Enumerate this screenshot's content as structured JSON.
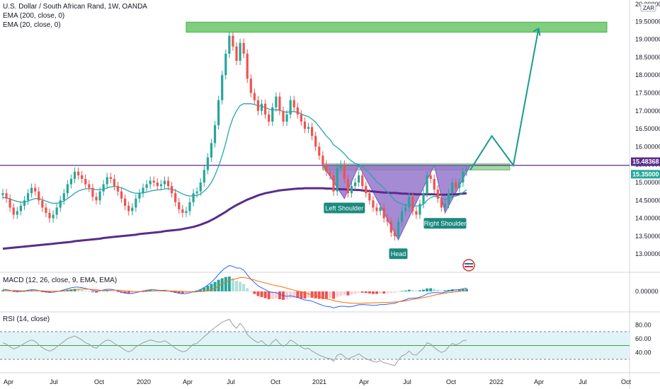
{
  "chart_data": {
    "type": "line",
    "legend": {
      "symbol": "U.S. Dollar / South African Rand, 1W, OANDA",
      "ema200": "EMA (200, close, 0)",
      "ema20": "EMA (20, close, 0)"
    },
    "price_axis": {
      "ticks": [
        "19.50000",
        "19.00000",
        "18.50000",
        "18.00000",
        "17.50000",
        "17.00000",
        "16.50000",
        "16.00000",
        "15.50000",
        "15.00000",
        "14.50000",
        "14.00000",
        "13.50000",
        "13.00000"
      ],
      "top_label": "20.00000",
      "currency": "ZAR"
    },
    "time_axis": [
      "Apr",
      "Jul",
      "Oct",
      "2020",
      "Apr",
      "Jul",
      "Oct",
      "2021",
      "Apr",
      "Jul",
      "Oct",
      "2022",
      "Apr",
      "Jul",
      "Oct"
    ],
    "price_tags": [
      {
        "value": "15.48368",
        "color": "#5b2c8a"
      },
      {
        "value": "15.35000",
        "color": "#26a69a"
      }
    ],
    "close_series": [
      14.7,
      14.55,
      14.3,
      14.1,
      14.2,
      14.35,
      14.5,
      14.7,
      14.85,
      14.75,
      14.5,
      14.3,
      14.15,
      14.0,
      14.1,
      14.3,
      14.5,
      14.7,
      14.95,
      15.1,
      15.3,
      15.2,
      15.1,
      14.95,
      14.85,
      14.6,
      14.5,
      14.75,
      14.95,
      15.15,
      15.1,
      14.9,
      14.75,
      14.55,
      14.35,
      14.2,
      14.3,
      14.55,
      14.7,
      14.85,
      14.95,
      15.05,
      15.0,
      14.9,
      14.95,
      15.05,
      14.9,
      14.7,
      14.45,
      14.25,
      14.15,
      14.2,
      14.45,
      14.7,
      14.75,
      15.0,
      15.35,
      15.7,
      16.1,
      16.6,
      17.3,
      18.0,
      18.6,
      19.1,
      18.8,
      18.4,
      18.9,
      18.6,
      17.9,
      17.5,
      17.3,
      17.0,
      17.2,
      16.9,
      16.7,
      17.1,
      17.4,
      17.0,
      16.7,
      16.9,
      17.3,
      17.1,
      16.9,
      16.7,
      16.5,
      16.55,
      16.3,
      16.0,
      15.75,
      15.5,
      15.3,
      15.2,
      14.75,
      15.4,
      15.5,
      15.1,
      14.7,
      14.9,
      15.0,
      15.2,
      14.9,
      14.7,
      14.5,
      14.3,
      14.2,
      14.3,
      14.0,
      13.9,
      13.6,
      13.5,
      13.9,
      14.2,
      14.3,
      14.6,
      14.2,
      14.1,
      14.4,
      14.7,
      15.2,
      15.1,
      14.8,
      14.55,
      14.3,
      14.4,
      14.7,
      15.0,
      14.85,
      15.0,
      15.3,
      15.35
    ],
    "ema20": [
      14.58,
      14.57,
      14.54,
      14.5,
      14.47,
      14.45,
      14.45,
      14.48,
      14.52,
      14.55,
      14.55,
      14.52,
      14.48,
      14.44,
      14.42,
      14.42,
      14.44,
      14.48,
      14.55,
      14.62,
      14.7,
      14.76,
      14.8,
      14.82,
      14.83,
      14.82,
      14.8,
      14.8,
      14.81,
      14.85,
      14.88,
      14.89,
      14.88,
      14.85,
      14.81,
      14.76,
      14.72,
      14.7,
      14.7,
      14.71,
      14.73,
      14.76,
      14.78,
      14.79,
      14.8,
      14.82,
      14.83,
      14.81,
      14.78,
      14.73,
      14.68,
      14.64,
      14.62,
      14.63,
      14.64,
      14.68,
      14.76,
      14.86,
      15.0,
      15.2,
      15.45,
      15.75,
      16.1,
      16.5,
      16.8,
      17.0,
      17.15,
      17.2,
      17.2,
      17.2,
      17.18,
      17.15,
      17.13,
      17.1,
      17.05,
      17.03,
      17.03,
      17.02,
      16.98,
      16.96,
      16.98,
      16.98,
      16.96,
      16.92,
      16.87,
      16.84,
      16.77,
      16.68,
      16.56,
      16.43,
      16.3,
      16.2,
      16.05,
      15.98,
      15.9,
      15.8,
      15.68,
      15.6,
      15.53,
      15.5,
      15.45,
      15.36,
      15.26,
      15.14,
      15.02,
      14.94,
      14.84,
      14.74,
      14.62,
      14.5,
      14.44,
      14.4,
      14.36,
      14.38,
      14.36,
      14.34,
      14.35,
      14.39,
      14.5,
      14.58,
      14.61,
      14.6,
      14.56,
      14.53,
      14.55,
      14.6,
      14.62,
      14.65,
      14.72,
      14.8
    ],
    "ema200": [
      13.15,
      13.16,
      13.17,
      13.18,
      13.19,
      13.2,
      13.21,
      13.22,
      13.23,
      13.24,
      13.25,
      13.26,
      13.27,
      13.28,
      13.29,
      13.3,
      13.31,
      13.32,
      13.33,
      13.34,
      13.36,
      13.37,
      13.38,
      13.39,
      13.4,
      13.41,
      13.42,
      13.43,
      13.45,
      13.46,
      13.47,
      13.48,
      13.49,
      13.5,
      13.51,
      13.52,
      13.53,
      13.54,
      13.56,
      13.57,
      13.58,
      13.59,
      13.6,
      13.61,
      13.62,
      13.64,
      13.65,
      13.66,
      13.67,
      13.68,
      13.7,
      13.72,
      13.74,
      13.76,
      13.79,
      13.82,
      13.86,
      13.9,
      13.95,
      14.0,
      14.06,
      14.12,
      14.18,
      14.25,
      14.31,
      14.37,
      14.42,
      14.47,
      14.52,
      14.56,
      14.6,
      14.64,
      14.67,
      14.7,
      14.72,
      14.74,
      14.76,
      14.78,
      14.79,
      14.8,
      14.81,
      14.82,
      14.83,
      14.83,
      14.84,
      14.84,
      14.84,
      14.84,
      14.84,
      14.84,
      14.83,
      14.83,
      14.82,
      14.82,
      14.81,
      14.81,
      14.8,
      14.8,
      14.79,
      14.79,
      14.78,
      14.77,
      14.76,
      14.75,
      14.74,
      14.73,
      14.72,
      14.72,
      14.71,
      14.71,
      14.7,
      14.69,
      14.69,
      14.68,
      14.68,
      14.67,
      14.67,
      14.67,
      14.67,
      14.67,
      14.67,
      14.66,
      14.66,
      14.66,
      14.66,
      14.67,
      14.67,
      14.68,
      14.69,
      14.7
    ],
    "resistance_zone": {
      "low": 19.2,
      "high": 19.48
    },
    "neckline_zone": {
      "low": 15.35,
      "high": 15.52
    },
    "horizontal_line": 15.48,
    "pattern_labels": [
      "Left Shoulder",
      "Head",
      "Right Shoulder"
    ],
    "projection": [
      {
        "x": 130,
        "y": 15.35
      },
      {
        "x": 136,
        "y": 16.3
      },
      {
        "x": 142,
        "y": 15.48
      },
      {
        "x": 149,
        "y": 19.3
      },
      {
        "x": 150,
        "y": 19.1
      }
    ],
    "macd": {
      "title": "MACD (12, 26, close, 9, EMA, EMA)",
      "tick": "0.00000",
      "hist": [
        0.05,
        0.04,
        0.02,
        -0.02,
        -0.04,
        -0.03,
        0.0,
        0.03,
        0.05,
        0.04,
        0.01,
        -0.03,
        -0.05,
        -0.06,
        -0.05,
        -0.02,
        0.02,
        0.05,
        0.08,
        0.1,
        0.12,
        0.1,
        0.07,
        0.03,
        0.0,
        -0.04,
        -0.06,
        -0.03,
        0.02,
        0.06,
        0.05,
        0.01,
        -0.03,
        -0.07,
        -0.1,
        -0.12,
        -0.1,
        -0.05,
        -0.01,
        0.03,
        0.05,
        0.07,
        0.06,
        0.03,
        0.02,
        0.03,
        0.01,
        -0.03,
        -0.07,
        -0.1,
        -0.11,
        -0.09,
        -0.04,
        0.01,
        0.04,
        0.1,
        0.18,
        0.27,
        0.36,
        0.45,
        0.55,
        0.62,
        0.68,
        0.7,
        0.62,
        0.5,
        0.45,
        0.35,
        0.15,
        0.0,
        -0.12,
        -0.22,
        -0.27,
        -0.32,
        -0.37,
        -0.36,
        -0.33,
        -0.37,
        -0.4,
        -0.38,
        -0.32,
        -0.3,
        -0.31,
        -0.33,
        -0.34,
        -0.3,
        -0.3,
        -0.33,
        -0.35,
        -0.36,
        -0.36,
        -0.33,
        -0.35,
        -0.26,
        -0.2,
        -0.18,
        -0.19,
        -0.15,
        -0.12,
        -0.06,
        -0.06,
        -0.08,
        -0.1,
        -0.12,
        -0.12,
        -0.09,
        -0.1,
        -0.08,
        -0.07,
        -0.06,
        -0.01,
        0.02,
        0.04,
        0.08,
        0.06,
        0.04,
        0.05,
        0.08,
        0.14,
        0.15,
        0.12,
        0.08,
        0.04,
        0.05,
        0.07,
        0.1,
        0.09,
        0.09,
        0.1,
        0.12
      ],
      "macd_line": [
        0.1,
        0.08,
        0.05,
        0.02,
        0.0,
        0.0,
        0.03,
        0.06,
        0.08,
        0.07,
        0.04,
        0.0,
        -0.03,
        -0.05,
        -0.04,
        -0.01,
        0.03,
        0.07,
        0.12,
        0.17,
        0.2,
        0.2,
        0.18,
        0.14,
        0.1,
        0.05,
        0.02,
        0.03,
        0.07,
        0.1,
        0.1,
        0.07,
        0.03,
        -0.02,
        -0.07,
        -0.1,
        -0.1,
        -0.06,
        -0.02,
        0.02,
        0.05,
        0.08,
        0.08,
        0.06,
        0.05,
        0.05,
        0.03,
        -0.01,
        -0.05,
        -0.09,
        -0.11,
        -0.1,
        -0.06,
        -0.02,
        0.02,
        0.09,
        0.18,
        0.3,
        0.44,
        0.6,
        0.8,
        0.98,
        1.12,
        1.22,
        1.18,
        1.1,
        1.1,
        1.0,
        0.78,
        0.58,
        0.42,
        0.26,
        0.17,
        0.08,
        -0.01,
        -0.05,
        -0.06,
        -0.13,
        -0.2,
        -0.23,
        -0.21,
        -0.24,
        -0.29,
        -0.35,
        -0.41,
        -0.42,
        -0.46,
        -0.53,
        -0.6,
        -0.66,
        -0.71,
        -0.72,
        -0.78,
        -0.73,
        -0.7,
        -0.7,
        -0.73,
        -0.71,
        -0.68,
        -0.63,
        -0.62,
        -0.63,
        -0.64,
        -0.66,
        -0.65,
        -0.62,
        -0.62,
        -0.6,
        -0.58,
        -0.56,
        -0.5,
        -0.45,
        -0.4,
        -0.33,
        -0.32,
        -0.31,
        -0.27,
        -0.21,
        -0.12,
        -0.07,
        -0.06,
        -0.06,
        -0.07,
        -0.04,
        0.01,
        0.06,
        0.07,
        0.09,
        0.12,
        0.16
      ],
      "signal_line": [
        0.05,
        0.04,
        0.03,
        0.04,
        0.04,
        0.03,
        0.03,
        0.03,
        0.03,
        0.03,
        0.03,
        0.03,
        0.02,
        0.01,
        0.01,
        0.01,
        0.01,
        0.02,
        0.04,
        0.07,
        0.08,
        0.1,
        0.11,
        0.11,
        0.1,
        0.09,
        0.08,
        0.06,
        0.05,
        0.04,
        0.05,
        0.06,
        0.06,
        0.05,
        0.03,
        0.02,
        0.0,
        -0.01,
        -0.01,
        -0.01,
        0.0,
        0.01,
        0.02,
        0.03,
        0.03,
        0.02,
        0.02,
        0.02,
        0.02,
        0.01,
        0.0,
        -0.01,
        -0.02,
        -0.03,
        -0.02,
        -0.01,
        0.0,
        0.03,
        0.08,
        0.15,
        0.25,
        0.36,
        0.44,
        0.52,
        0.56,
        0.6,
        0.65,
        0.65,
        0.63,
        0.58,
        0.54,
        0.48,
        0.44,
        0.4,
        0.36,
        0.31,
        0.27,
        0.24,
        0.2,
        0.15,
        0.11,
        0.06,
        0.02,
        -0.02,
        -0.07,
        -0.12,
        -0.16,
        -0.2,
        -0.25,
        -0.3,
        -0.35,
        -0.39,
        -0.43,
        -0.47,
        -0.5,
        -0.52,
        -0.54,
        -0.56,
        -0.56,
        -0.57,
        -0.56,
        -0.55,
        -0.54,
        -0.54,
        -0.53,
        -0.53,
        -0.52,
        -0.52,
        -0.51,
        -0.5,
        -0.49,
        -0.47,
        -0.44,
        -0.41,
        -0.38,
        -0.35,
        -0.32,
        -0.29,
        -0.26,
        -0.22,
        -0.18,
        -0.14,
        -0.11,
        -0.09,
        -0.06,
        -0.04,
        -0.02,
        0.0,
        0.02,
        0.04
      ]
    },
    "rsi": {
      "title": "RSI (14, close)",
      "ticks": [
        "80.00",
        "60.00",
        "40.00"
      ],
      "upper_band": 70,
      "lower_band": 30,
      "midline": 50,
      "values": [
        54,
        52,
        48,
        45,
        47,
        50,
        53,
        56,
        58,
        56,
        51,
        47,
        44,
        42,
        44,
        48,
        52,
        56,
        60,
        62,
        64,
        61,
        58,
        54,
        52,
        48,
        46,
        51,
        55,
        58,
        57,
        53,
        50,
        47,
        43,
        41,
        43,
        48,
        51,
        54,
        56,
        58,
        57,
        55,
        55,
        57,
        54,
        50,
        46,
        43,
        41,
        42,
        47,
        52,
        53,
        58,
        63,
        67,
        72,
        76,
        80,
        84,
        86,
        88,
        80,
        75,
        82,
        76,
        66,
        61,
        57,
        54,
        57,
        52,
        49,
        55,
        59,
        53,
        49,
        52,
        58,
        55,
        51,
        48,
        45,
        46,
        42,
        39,
        36,
        34,
        32,
        31,
        27,
        36,
        38,
        34,
        30,
        33,
        35,
        38,
        34,
        31,
        29,
        27,
        26,
        28,
        25,
        24,
        22,
        21,
        29,
        35,
        37,
        42,
        37,
        36,
        41,
        46,
        54,
        52,
        47,
        43,
        40,
        42,
        48,
        53,
        51,
        53,
        57,
        58
      ]
    }
  }
}
